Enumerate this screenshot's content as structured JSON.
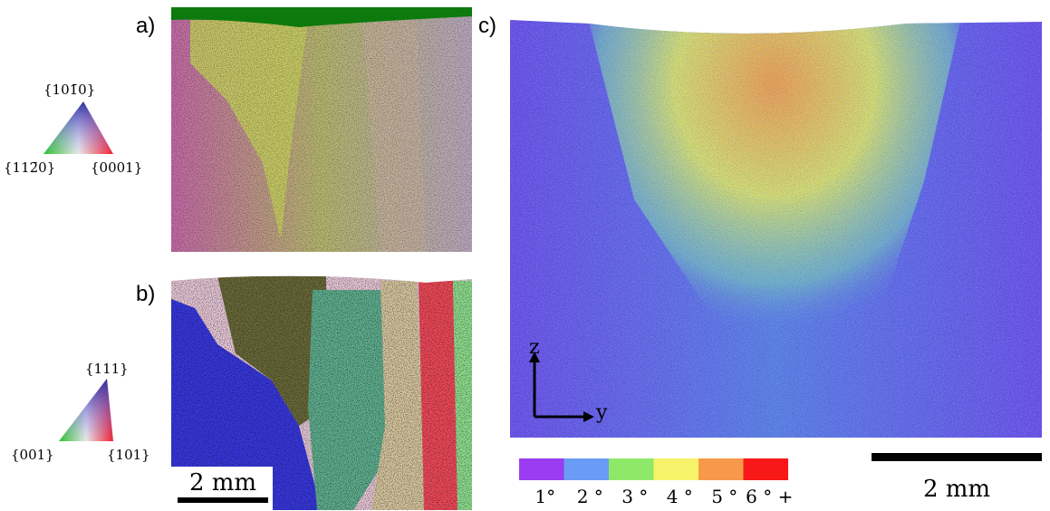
{
  "panels": {
    "a": {
      "label": "a)",
      "ipf": {
        "top": "{101̄0}",
        "left": "{112̄0}",
        "right": "{0001}"
      }
    },
    "b": {
      "label": "b)",
      "ipf": {
        "top": "{111}",
        "left": "{001}",
        "right": "{101}"
      },
      "scale_bar": "2 mm"
    },
    "c": {
      "label": "c)",
      "axes": {
        "z": "z",
        "y": "y"
      },
      "scale_bar": "2 mm",
      "colorbar": [
        {
          "label": "1°",
          "color": "#9a3cf2"
        },
        {
          "label": "2 °",
          "color": "#6a9cf5"
        },
        {
          "label": "3 °",
          "color": "#8fe86a"
        },
        {
          "label": "4 °",
          "color": "#f6f36a"
        },
        {
          "label": "5 °",
          "color": "#f7994a"
        },
        {
          "label": "6 ° +",
          "color": "#f81818"
        }
      ]
    }
  }
}
